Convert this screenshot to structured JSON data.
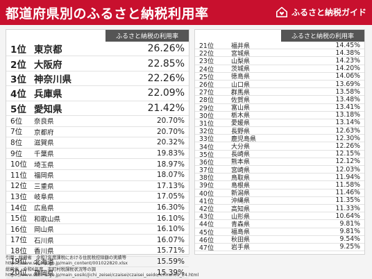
{
  "title": "都道府県別のふるさと納税利用率",
  "brand": {
    "name": "ふるさと納税ガイド",
    "icon": "house-heart-icon"
  },
  "table": {
    "column_header": "ふるさと納税の利用率",
    "left_rows": [
      {
        "rank": "1位",
        "pref": "東京都",
        "rate": "26.26%"
      },
      {
        "rank": "2位",
        "pref": "大阪府",
        "rate": "22.85%"
      },
      {
        "rank": "3位",
        "pref": "神奈川県",
        "rate": "22.26%"
      },
      {
        "rank": "4位",
        "pref": "兵庫県",
        "rate": "22.09%"
      },
      {
        "rank": "5位",
        "pref": "愛知県",
        "rate": "21.42%"
      },
      {
        "rank": "6位",
        "pref": "奈良県",
        "rate": "20.70%"
      },
      {
        "rank": "7位",
        "pref": "京都府",
        "rate": "20.70%"
      },
      {
        "rank": "8位",
        "pref": "滋賀県",
        "rate": "20.32%"
      },
      {
        "rank": "9位",
        "pref": "千葉県",
        "rate": "19.83%"
      },
      {
        "rank": "10位",
        "pref": "埼玉県",
        "rate": "18.97%"
      },
      {
        "rank": "11位",
        "pref": "福岡県",
        "rate": "18.07%"
      },
      {
        "rank": "12位",
        "pref": "三重県",
        "rate": "17.13%"
      },
      {
        "rank": "13位",
        "pref": "岐阜県",
        "rate": "17.05%"
      },
      {
        "rank": "14位",
        "pref": "広島県",
        "rate": "16.30%"
      },
      {
        "rank": "15位",
        "pref": "和歌山県",
        "rate": "16.10%"
      },
      {
        "rank": "16位",
        "pref": "岡山県",
        "rate": "16.10%"
      },
      {
        "rank": "17位",
        "pref": "石川県",
        "rate": "16.07%"
      },
      {
        "rank": "18位",
        "pref": "香川県",
        "rate": "15.71%"
      },
      {
        "rank": "19位",
        "pref": "北海道",
        "rate": "15.59%"
      },
      {
        "rank": "20位",
        "pref": "静岡県",
        "rate": "15.39%"
      }
    ],
    "right_rows": [
      {
        "rank": "21位",
        "pref": "福井県",
        "rate": "14.45%"
      },
      {
        "rank": "22位",
        "pref": "宮城県",
        "rate": "14.38%"
      },
      {
        "rank": "23位",
        "pref": "山梨県",
        "rate": "14.23%"
      },
      {
        "rank": "24位",
        "pref": "茨城県",
        "rate": "14.20%"
      },
      {
        "rank": "25位",
        "pref": "徳島県",
        "rate": "14.06%"
      },
      {
        "rank": "26位",
        "pref": "山口県",
        "rate": "13.69%"
      },
      {
        "rank": "27位",
        "pref": "群馬県",
        "rate": "13.58%"
      },
      {
        "rank": "28位",
        "pref": "佐賀県",
        "rate": "13.48%"
      },
      {
        "rank": "29位",
        "pref": "富山県",
        "rate": "13.41%"
      },
      {
        "rank": "30位",
        "pref": "栃木県",
        "rate": "13.18%"
      },
      {
        "rank": "31位",
        "pref": "愛媛県",
        "rate": "13.14%"
      },
      {
        "rank": "32位",
        "pref": "長野県",
        "rate": "12.63%"
      },
      {
        "rank": "33位",
        "pref": "鹿児島県",
        "rate": "12.30%"
      },
      {
        "rank": "34位",
        "pref": "大分県",
        "rate": "12.26%"
      },
      {
        "rank": "35位",
        "pref": "長崎県",
        "rate": "12.15%"
      },
      {
        "rank": "36位",
        "pref": "熊本県",
        "rate": "12.12%"
      },
      {
        "rank": "37位",
        "pref": "宮崎県",
        "rate": "12.03%"
      },
      {
        "rank": "38位",
        "pref": "鳥取県",
        "rate": "11.94%"
      },
      {
        "rank": "39位",
        "pref": "島根県",
        "rate": "11.58%"
      },
      {
        "rank": "40位",
        "pref": "新潟県",
        "rate": "11.46%"
      },
      {
        "rank": "41位",
        "pref": "沖縄県",
        "rate": "11.35%"
      },
      {
        "rank": "42位",
        "pref": "高知県",
        "rate": "11.33%"
      },
      {
        "rank": "43位",
        "pref": "山形県",
        "rate": "10.64%"
      },
      {
        "rank": "44位",
        "pref": "青森県",
        "rate": "9.81%"
      },
      {
        "rank": "45位",
        "pref": "福島県",
        "rate": "9.81%"
      },
      {
        "rank": "46位",
        "pref": "秋田県",
        "rate": "9.54%"
      },
      {
        "rank": "47位",
        "pref": "岩手県",
        "rate": "9.25%"
      }
    ]
  },
  "sources": [
    "引用：総務省　令和7年度課税における住民税控除額の実績等",
    "https://www.soumu.go.jp/main_content/001022820.xlsx",
    "総務省　令和6年度　市町村税課税状況等の調",
    "https://www.soumu.go.jp/main_sosiki/jichi_zeisei/czaisei/czaisei_seido/ichiran09_24.html"
  ]
}
